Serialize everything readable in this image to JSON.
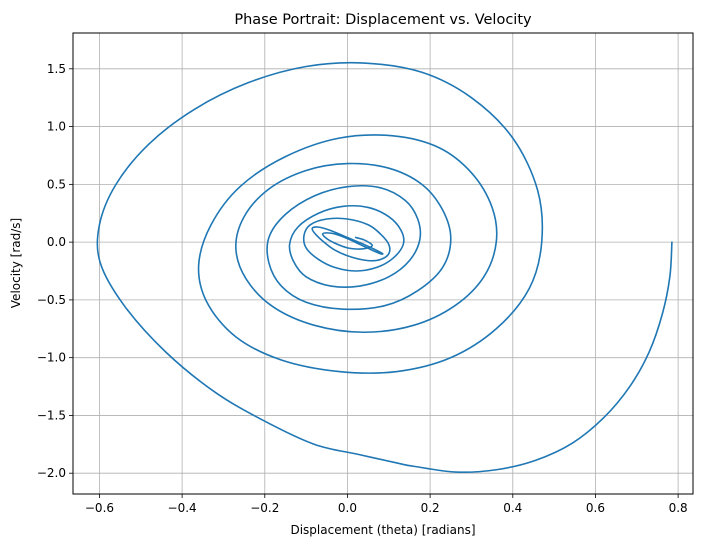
{
  "chart_data": {
    "type": "line",
    "title": "Phase Portrait: Displacement vs. Velocity",
    "xlabel": "Displacement (theta) [radians]",
    "ylabel": "Velocity [rad/s]",
    "xlim": [
      -0.664,
      0.836
    ],
    "ylim": [
      -2.18,
      1.81
    ],
    "xticks": [
      -0.6,
      -0.4,
      -0.2,
      0.0,
      0.2,
      0.4,
      0.6,
      0.8
    ],
    "xtick_labels": [
      "−0.6",
      "−0.4",
      "−0.2",
      "0.0",
      "0.2",
      "0.4",
      "0.6",
      "0.8"
    ],
    "yticks": [
      -2.0,
      -1.5,
      -1.0,
      -0.5,
      0.0,
      0.5,
      1.0,
      1.5
    ],
    "ytick_labels": [
      "−2.0",
      "−1.5",
      "−1.0",
      "−0.5",
      "0.0",
      "0.5",
      "1.0",
      "1.5"
    ],
    "grid": true,
    "line_color": "#1f77b4",
    "grid_color": "#b0b0b0",
    "series": [
      {
        "x": [
          0.785,
          0.78,
          0.762,
          0.73,
          0.683,
          0.62,
          0.544,
          0.454,
          0.36,
          0.262,
          0.16,
          0.13,
          0.03,
          -0.08,
          -0.2,
          -0.32,
          -0.44,
          -0.54,
          -0.598,
          -0.6,
          -0.56,
          -0.48,
          -0.37,
          -0.24,
          -0.1,
          0.04,
          0.18,
          0.3,
          0.4,
          0.46,
          0.47,
          0.44,
          0.36,
          0.25,
          0.12,
          -0.02,
          -0.16,
          -0.27,
          -0.34,
          -0.36,
          -0.33,
          -0.26,
          -0.15,
          -0.02,
          0.11,
          0.22,
          0.3,
          0.35,
          0.36,
          0.33,
          0.26,
          0.16,
          0.04,
          -0.08,
          -0.18,
          -0.245,
          -0.27,
          -0.25,
          -0.19,
          -0.1,
          0.0,
          0.1,
          0.18,
          0.23,
          0.25,
          0.23,
          0.17,
          0.09,
          -0.01,
          -0.1,
          -0.16,
          -0.19,
          -0.19,
          -0.15,
          -0.08,
          0.0,
          0.08,
          0.14,
          0.17,
          0.175,
          0.15,
          0.1,
          0.03,
          -0.04,
          -0.1,
          -0.13,
          -0.14,
          -0.12,
          -0.07,
          -0.01,
          0.05,
          0.1,
          0.13,
          0.135,
          0.11,
          0.07,
          0.02,
          -0.03,
          -0.07,
          -0.1,
          -0.105,
          -0.09,
          -0.05,
          0.0,
          0.05,
          0.08,
          0.1,
          0.1,
          0.08,
          0.05,
          0.01,
          -0.03,
          -0.06,
          -0.08,
          -0.085,
          -0.07,
          -0.04,
          0.0,
          0.04,
          0.07,
          0.085,
          0.08,
          0.06,
          0.03,
          0.0,
          -0.03,
          -0.05,
          -0.06,
          -0.05,
          -0.03,
          0.0,
          0.03,
          0.05,
          0.06,
          0.055,
          0.04,
          0.02
        ],
        "y": [
          0.0,
          -0.3,
          -0.62,
          -0.95,
          -1.25,
          -1.52,
          -1.74,
          -1.89,
          -1.97,
          -1.99,
          -1.94,
          -1.92,
          -1.84,
          -1.75,
          -1.55,
          -1.3,
          -0.95,
          -0.55,
          -0.18,
          0.15,
          0.5,
          0.85,
          1.15,
          1.38,
          1.52,
          1.55,
          1.47,
          1.25,
          0.9,
          0.45,
          0.0,
          -0.4,
          -0.75,
          -1.0,
          -1.12,
          -1.12,
          -1.02,
          -0.82,
          -0.52,
          -0.2,
          0.15,
          0.48,
          0.74,
          0.9,
          0.92,
          0.82,
          0.6,
          0.3,
          0.0,
          -0.3,
          -0.55,
          -0.72,
          -0.78,
          -0.72,
          -0.56,
          -0.32,
          -0.05,
          0.22,
          0.46,
          0.62,
          0.68,
          0.64,
          0.5,
          0.28,
          0.03,
          -0.22,
          -0.42,
          -0.55,
          -0.58,
          -0.52,
          -0.38,
          -0.18,
          0.04,
          0.24,
          0.4,
          0.48,
          0.47,
          0.36,
          0.2,
          0.02,
          -0.16,
          -0.3,
          -0.38,
          -0.38,
          -0.3,
          -0.17,
          -0.02,
          0.13,
          0.25,
          0.31,
          0.3,
          0.22,
          0.1,
          -0.02,
          -0.14,
          -0.22,
          -0.25,
          -0.22,
          -0.15,
          -0.05,
          0.06,
          0.15,
          0.2,
          0.2,
          0.15,
          0.07,
          -0.02,
          -0.1,
          -0.15,
          -0.16,
          -0.13,
          -0.07,
          0.01,
          0.08,
          0.12,
          0.13,
          0.1,
          0.04,
          -0.02,
          -0.07,
          -0.1,
          -0.1,
          -0.07,
          -0.02,
          0.03,
          0.07,
          0.08,
          0.07,
          0.03,
          -0.01,
          -0.05,
          -0.06,
          -0.05,
          -0.03,
          -0.01,
          0.02,
          0.04
        ]
      }
    ]
  }
}
